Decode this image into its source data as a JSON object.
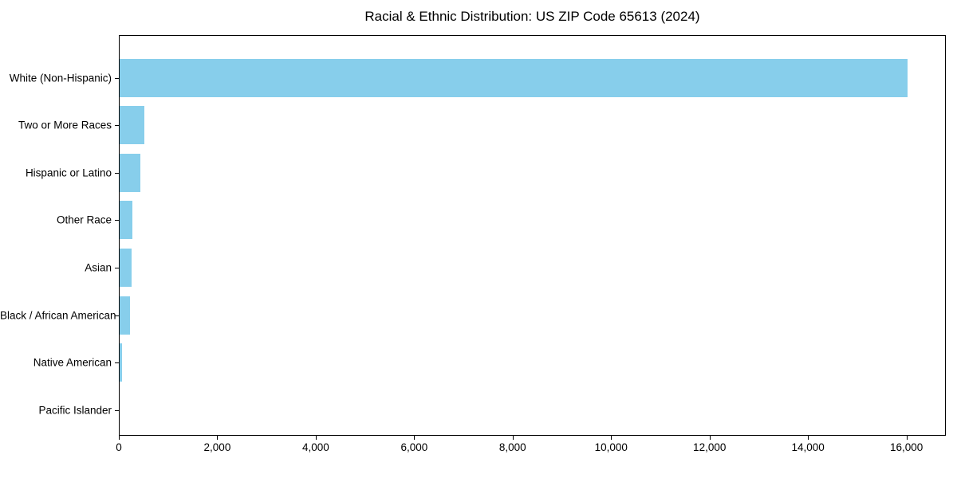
{
  "title": "Racial & Ethnic Distribution: US ZIP Code 65613 (2024)",
  "colors": {
    "bar": "#87CEEB",
    "axis": "#000000",
    "text": "#000000",
    "background": "#FFFFFF"
  },
  "chart_data": {
    "type": "bar",
    "orientation": "horizontal",
    "title": "Racial & Ethnic Distribution: US ZIP Code 65613 (2024)",
    "categories": [
      "White (Non-Hispanic)",
      "Two or More Races",
      "Hispanic or Latino",
      "Other Race",
      "Asian",
      "Black / African American",
      "Native American",
      "Pacific Islander"
    ],
    "values": [
      16000,
      510,
      420,
      255,
      250,
      205,
      50,
      0
    ],
    "xlabel": "",
    "ylabel": "",
    "xlim": [
      0,
      16800
    ],
    "xticks": [
      0,
      2000,
      4000,
      6000,
      8000,
      10000,
      12000,
      14000,
      16000
    ],
    "xtick_labels": [
      "0",
      "2,000",
      "4,000",
      "6,000",
      "8,000",
      "10,000",
      "12,000",
      "14,000",
      "16,000"
    ],
    "bar_color": "#87CEEB",
    "grid": false,
    "legend": null
  }
}
